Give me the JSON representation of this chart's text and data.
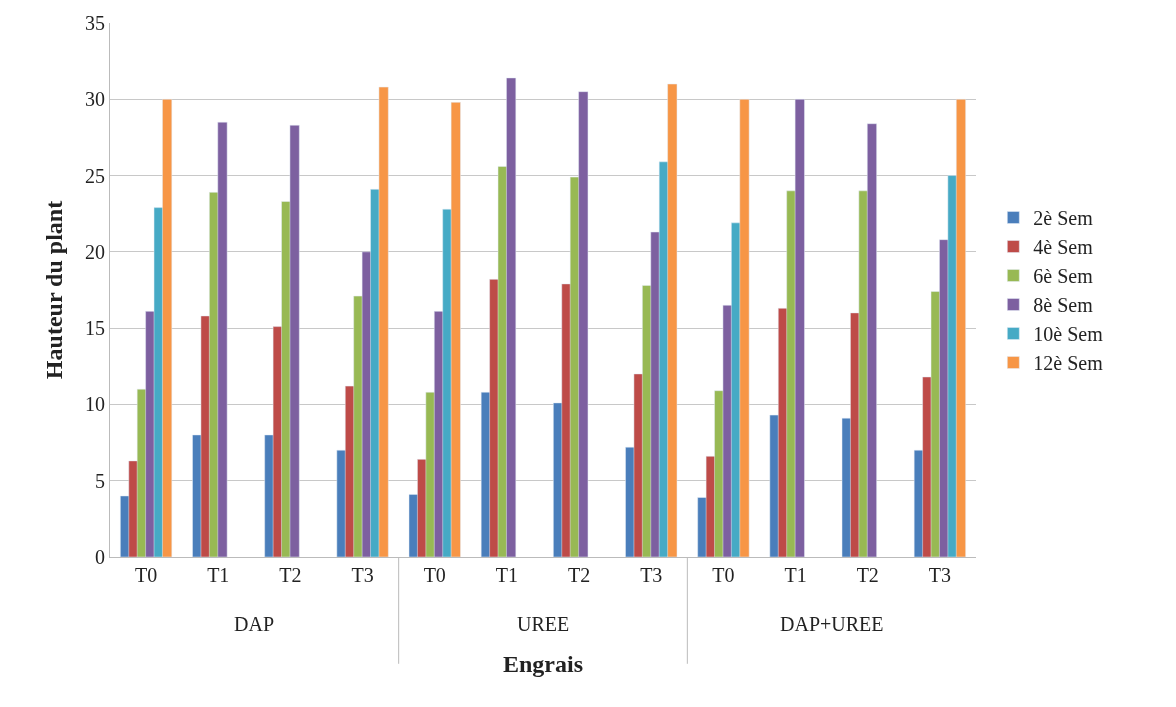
{
  "chart_data": {
    "type": "bar",
    "xlabel": "Engrais",
    "ylabel": "Hauteur du plant",
    "categories": [
      "T0",
      "T1",
      "T2",
      "T3",
      "T0",
      "T1",
      "T2",
      "T3",
      "T0",
      "T1",
      "T2",
      "T3"
    ],
    "annotations": [
      "DAP",
      "UREE",
      "DAP+UREE"
    ],
    "series": [
      {
        "name": "2è Sem",
        "color": "#4a7ebb",
        "values": [
          4,
          8,
          8,
          7,
          4.1,
          10.8,
          10.1,
          7.2,
          3.9,
          9.3,
          9.1,
          7
        ]
      },
      {
        "name": "4è Sem",
        "color": "#be4b48",
        "values": [
          6.3,
          15.8,
          15.1,
          11.2,
          6.4,
          18.2,
          17.9,
          12,
          6.6,
          16.3,
          16,
          11.8
        ]
      },
      {
        "name": "6è Sem",
        "color": "#98b954",
        "values": [
          11,
          23.9,
          23.3,
          17.1,
          10.8,
          25.6,
          24.9,
          17.8,
          10.9,
          24,
          24,
          17.4
        ]
      },
      {
        "name": "8è Sem",
        "color": "#7d60a0",
        "values": [
          16.1,
          28.5,
          28.3,
          20,
          16.1,
          31.4,
          30.5,
          21.3,
          16.5,
          30,
          28.4,
          20.8
        ]
      },
      {
        "name": "10è Sem",
        "color": "#46aac5",
        "values": [
          22.9,
          null,
          null,
          24.1,
          22.8,
          null,
          null,
          25.9,
          21.9,
          null,
          null,
          25
        ]
      },
      {
        "name": "12è Sem",
        "color": "#f79646",
        "values": [
          30,
          null,
          null,
          30.8,
          29.8,
          null,
          null,
          31,
          30,
          null,
          null,
          30
        ]
      }
    ],
    "ylim": [
      0,
      35
    ],
    "yticks": [
      0,
      5,
      10,
      15,
      20,
      25,
      30,
      35
    ],
    "grid": "y",
    "legend": "right"
  }
}
